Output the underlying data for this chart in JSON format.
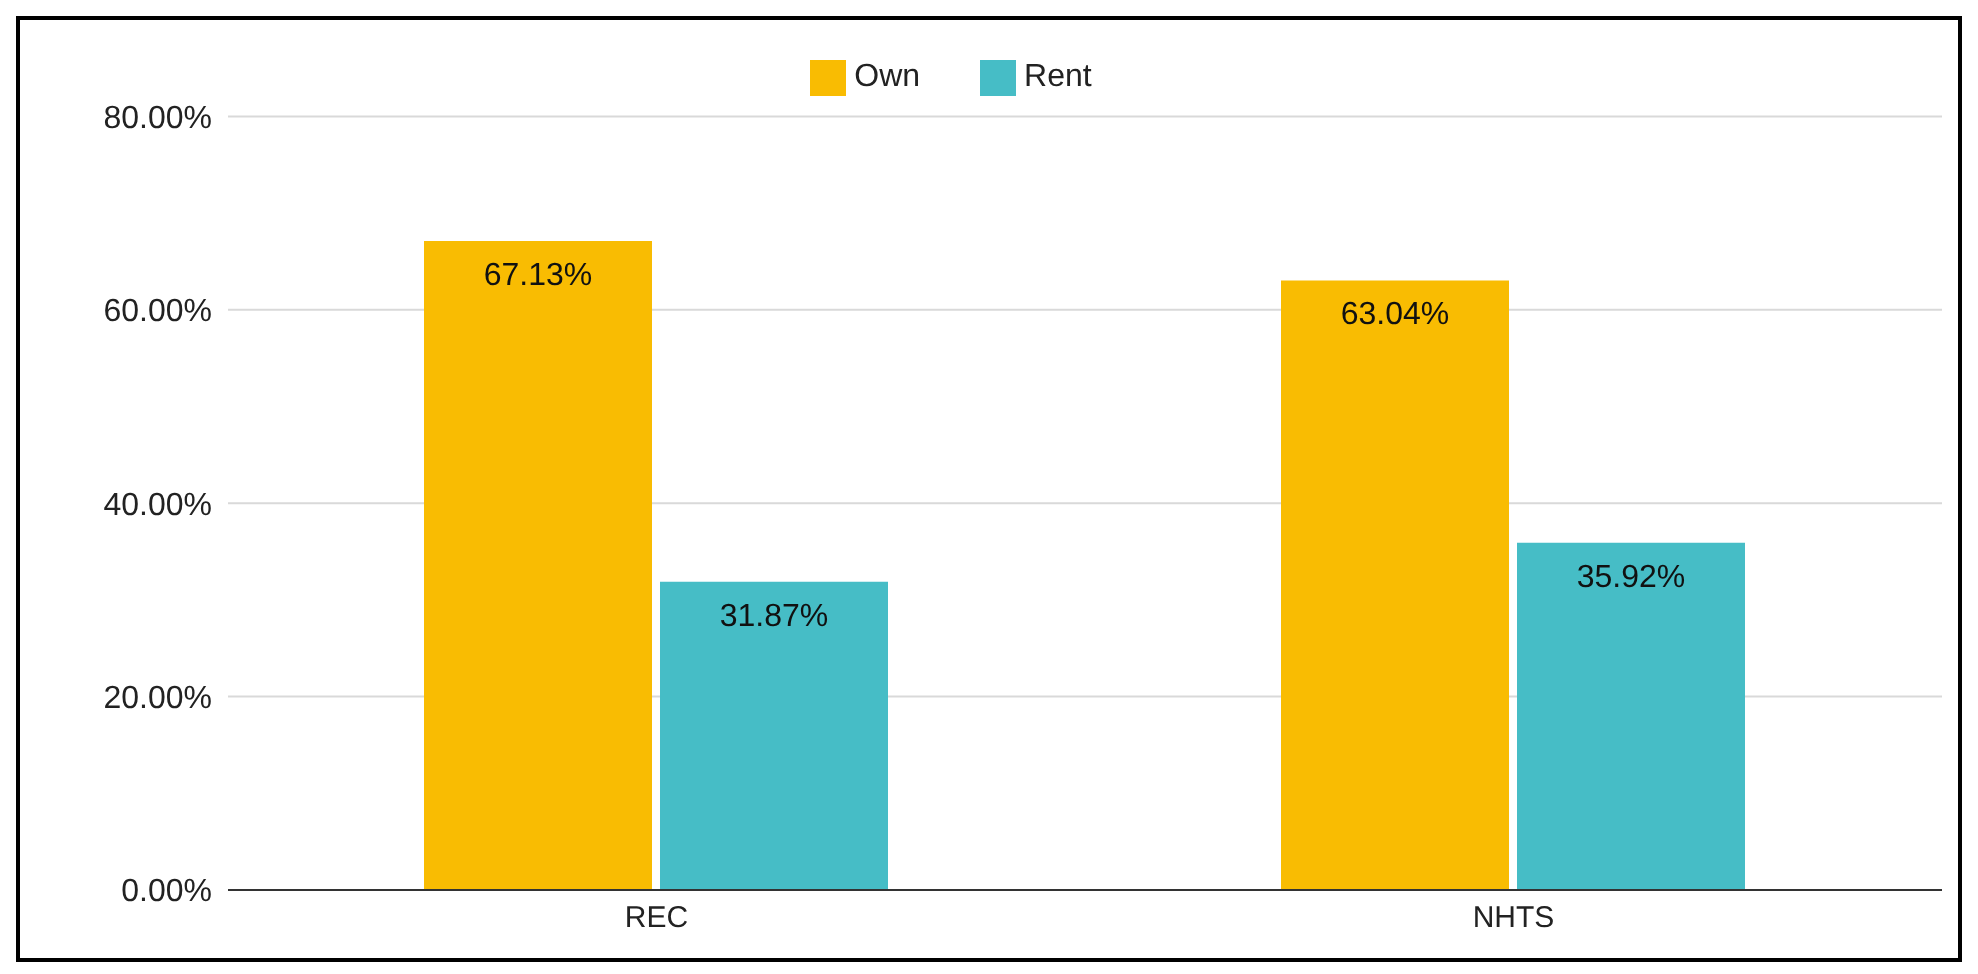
{
  "chart_data": {
    "type": "bar",
    "categories": [
      "REC",
      "NHTS"
    ],
    "series": [
      {
        "name": "Own",
        "color": "#f9bc02",
        "values": [
          67.13,
          63.04
        ],
        "value_labels": [
          "67.13%",
          "63.04%"
        ]
      },
      {
        "name": "Rent",
        "color": "#46bdc6",
        "values": [
          31.87,
          35.92
        ],
        "value_labels": [
          "31.87%",
          "35.92%"
        ]
      }
    ],
    "ylim": [
      0,
      80
    ],
    "yticks": [
      {
        "value": 0,
        "label": "0.00%"
      },
      {
        "value": 20,
        "label": "20.00%"
      },
      {
        "value": 40,
        "label": "40.00%"
      },
      {
        "value": 60,
        "label": "60.00%"
      },
      {
        "value": 80,
        "label": "80.00%"
      }
    ],
    "grid": "y",
    "legend": "top"
  }
}
